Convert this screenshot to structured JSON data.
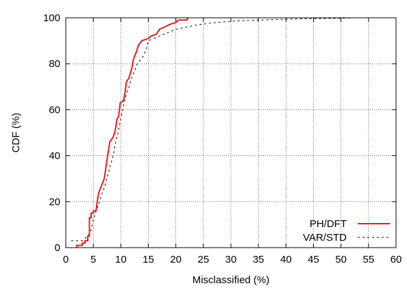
{
  "chart_data": {
    "type": "line",
    "xlabel": "Misclassified (%)",
    "ylabel": "CDF (%)",
    "xlim": [
      0,
      60
    ],
    "ylim": [
      0,
      100
    ],
    "x_ticks": [
      0,
      5,
      10,
      15,
      20,
      25,
      30,
      35,
      40,
      45,
      50,
      55,
      60
    ],
    "y_ticks": [
      0,
      20,
      40,
      60,
      80,
      100
    ],
    "grid": true,
    "legend_position": "bottom-right",
    "series": [
      {
        "name": "PH/DFT",
        "color": "#e41a1c",
        "style": "solid",
        "points": [
          [
            2.0,
            0
          ],
          [
            2.0,
            1
          ],
          [
            3.0,
            1
          ],
          [
            3.0,
            2
          ],
          [
            3.5,
            2
          ],
          [
            3.5,
            3
          ],
          [
            4.0,
            3
          ],
          [
            4.0,
            5
          ],
          [
            4.3,
            5
          ],
          [
            4.3,
            13
          ],
          [
            4.6,
            13
          ],
          [
            4.6,
            15
          ],
          [
            5.0,
            15
          ],
          [
            5.0,
            16
          ],
          [
            5.5,
            16
          ],
          [
            5.7,
            20
          ],
          [
            6.0,
            24
          ],
          [
            6.5,
            27
          ],
          [
            7.0,
            30
          ],
          [
            7.3,
            35
          ],
          [
            7.6,
            40
          ],
          [
            8.0,
            46
          ],
          [
            8.6,
            48
          ],
          [
            9.0,
            51
          ],
          [
            9.3,
            56
          ],
          [
            9.6,
            57
          ],
          [
            9.9,
            63
          ],
          [
            10.5,
            64
          ],
          [
            10.8,
            68
          ],
          [
            11.0,
            72
          ],
          [
            11.5,
            74
          ],
          [
            12.0,
            78
          ],
          [
            12.3,
            82
          ],
          [
            12.8,
            85
          ],
          [
            13.2,
            88
          ],
          [
            13.8,
            90
          ],
          [
            15.0,
            91
          ],
          [
            15.5,
            92
          ],
          [
            16.5,
            93
          ],
          [
            17.0,
            95
          ],
          [
            18.0,
            96
          ],
          [
            18.8,
            97
          ],
          [
            20.0,
            98
          ],
          [
            20.5,
            99
          ],
          [
            22.0,
            99
          ],
          [
            22.2,
            100
          ]
        ]
      },
      {
        "name": "VAR/STD",
        "color": "#000000",
        "style": "dashed",
        "points": [
          [
            1.0,
            3
          ],
          [
            3.0,
            3
          ],
          [
            3.5,
            4
          ],
          [
            4.0,
            5
          ],
          [
            4.5,
            7
          ],
          [
            5.0,
            12
          ],
          [
            5.5,
            16
          ],
          [
            6.0,
            19
          ],
          [
            6.5,
            23
          ],
          [
            7.0,
            26
          ],
          [
            7.5,
            30
          ],
          [
            8.0,
            35
          ],
          [
            8.5,
            39
          ],
          [
            9.0,
            45
          ],
          [
            9.5,
            50
          ],
          [
            10.0,
            56
          ],
          [
            10.5,
            62
          ],
          [
            11.0,
            67
          ],
          [
            11.5,
            70
          ],
          [
            12.0,
            74
          ],
          [
            12.5,
            77
          ],
          [
            13.0,
            80
          ],
          [
            14.0,
            83
          ],
          [
            14.6,
            86
          ],
          [
            15.0,
            90
          ],
          [
            16.0,
            91
          ],
          [
            18.0,
            93
          ],
          [
            20.0,
            95
          ],
          [
            22.0,
            96
          ],
          [
            24.0,
            97
          ],
          [
            26.0,
            97.6
          ],
          [
            30.0,
            98.5
          ],
          [
            35.0,
            99
          ],
          [
            40.0,
            99.4
          ],
          [
            45.0,
            99.6
          ],
          [
            50.0,
            99.8
          ],
          [
            52.5,
            100
          ],
          [
            55.0,
            100
          ]
        ]
      }
    ]
  }
}
